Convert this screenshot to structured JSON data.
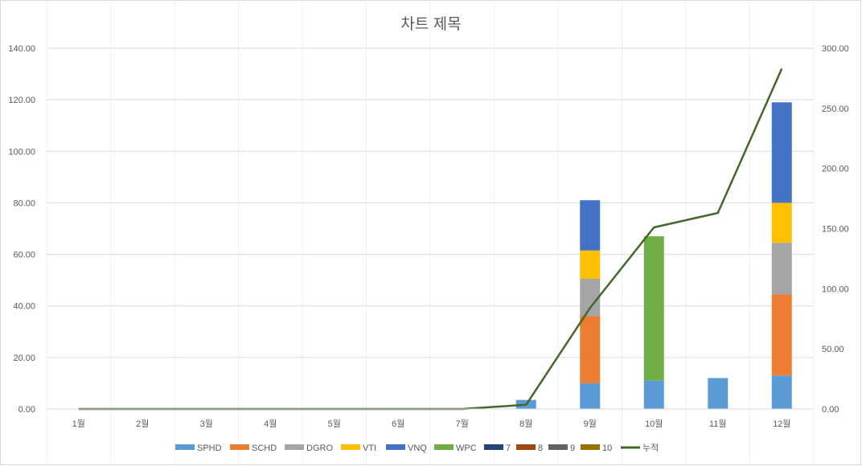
{
  "chart_data": {
    "type": "bar",
    "stacked": true,
    "title": "차트 제목",
    "categories": [
      "1월",
      "2월",
      "3월",
      "4월",
      "5월",
      "6월",
      "7월",
      "8월",
      "9월",
      "10월",
      "11월",
      "12월"
    ],
    "y_left": {
      "min": 0,
      "max": 140,
      "step": 20,
      "tick_labels": [
        "0.00",
        "20.00",
        "40.00",
        "60.00",
        "80.00",
        "100.00",
        "120.00",
        "140.00"
      ]
    },
    "y_right": {
      "min": 0,
      "max": 300,
      "step": 50,
      "tick_labels": [
        "0.00",
        "50.00",
        "100.00",
        "150.00",
        "200.00",
        "250.00",
        "300.00"
      ]
    },
    "grid": true,
    "legend_position": "bottom",
    "series": [
      {
        "name": "SPHD",
        "color": "#5B9BD5",
        "values": [
          0,
          0,
          0,
          0,
          0,
          0,
          0,
          3.5,
          10,
          11,
          12,
          13
        ]
      },
      {
        "name": "SCHD",
        "color": "#ED7D31",
        "values": [
          0,
          0,
          0,
          0,
          0,
          0,
          0,
          0,
          26,
          0,
          0,
          31.5
        ]
      },
      {
        "name": "DGRO",
        "color": "#A5A5A5",
        "values": [
          0,
          0,
          0,
          0,
          0,
          0,
          0,
          0,
          14.5,
          0,
          0,
          20
        ]
      },
      {
        "name": "VTI",
        "color": "#FFC000",
        "values": [
          0,
          0,
          0,
          0,
          0,
          0,
          0,
          0,
          11,
          0,
          0,
          15.5
        ]
      },
      {
        "name": "VNQ",
        "color": "#4472C4",
        "values": [
          0,
          0,
          0,
          0,
          0,
          0,
          0,
          0,
          19.5,
          0,
          0,
          39
        ]
      },
      {
        "name": "WPC",
        "color": "#70AD47",
        "values": [
          0,
          0,
          0,
          0,
          0,
          0,
          0,
          0,
          0,
          56,
          0,
          0
        ]
      },
      {
        "name": "7",
        "color": "#264478",
        "values": [
          0,
          0,
          0,
          0,
          0,
          0,
          0,
          0,
          0,
          0,
          0,
          0
        ]
      },
      {
        "name": "8",
        "color": "#9E480E",
        "values": [
          0,
          0,
          0,
          0,
          0,
          0,
          0,
          0,
          0,
          0,
          0,
          0
        ]
      },
      {
        "name": "9",
        "color": "#636363",
        "values": [
          0,
          0,
          0,
          0,
          0,
          0,
          0,
          0,
          0,
          0,
          0,
          0
        ]
      },
      {
        "name": "10",
        "color": "#997300",
        "values": [
          0,
          0,
          0,
          0,
          0,
          0,
          0,
          0,
          0,
          0,
          0,
          0
        ]
      }
    ],
    "line_series": {
      "name": "누적",
      "color": "#43682B",
      "axis": "right",
      "type": "line",
      "values": [
        0,
        0,
        0,
        0,
        0,
        0,
        0,
        3.5,
        84,
        151,
        163,
        283
      ]
    }
  }
}
